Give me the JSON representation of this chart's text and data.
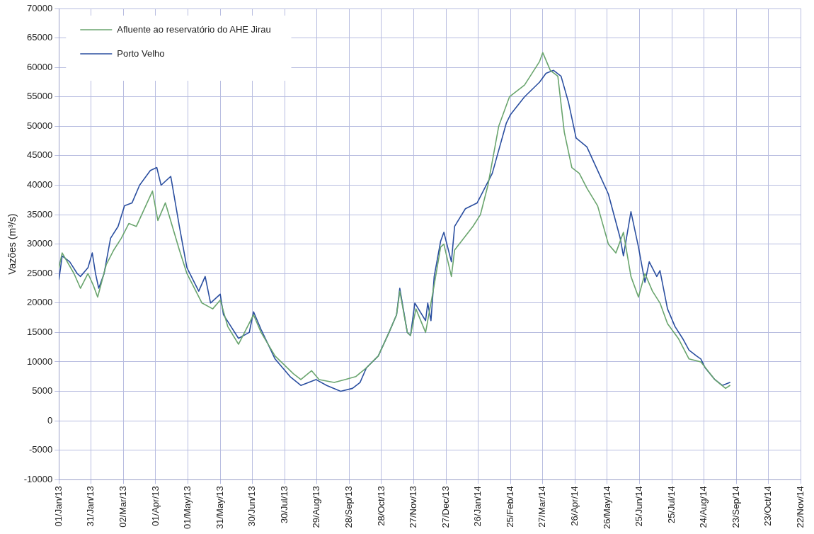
{
  "chart_data": {
    "type": "line",
    "ylabel": "Vazões (m³/s)",
    "xlim": [
      "2013-01-01",
      "2014-11-22"
    ],
    "xticks": [
      {
        "value": "2013-01-01",
        "label": "01/Jan/13"
      },
      {
        "value": "2013-01-31",
        "label": "31/Jan/13"
      },
      {
        "value": "2013-03-02",
        "label": "02/Mar/13"
      },
      {
        "value": "2013-04-01",
        "label": "01/Apr/13"
      },
      {
        "value": "2013-05-01",
        "label": "01/May/13"
      },
      {
        "value": "2013-05-31",
        "label": "31/May/13"
      },
      {
        "value": "2013-06-30",
        "label": "30/Jun/13"
      },
      {
        "value": "2013-07-30",
        "label": "30/Jul/13"
      },
      {
        "value": "2013-08-29",
        "label": "29/Aug/13"
      },
      {
        "value": "2013-09-28",
        "label": "28/Sep/13"
      },
      {
        "value": "2013-10-28",
        "label": "28/Oct/13"
      },
      {
        "value": "2013-11-27",
        "label": "27/Nov/13"
      },
      {
        "value": "2013-12-27",
        "label": "27/Dec/13"
      },
      {
        "value": "2014-01-26",
        "label": "26/Jan/14"
      },
      {
        "value": "2014-02-25",
        "label": "25/Feb/14"
      },
      {
        "value": "2014-03-27",
        "label": "27/Mar/14"
      },
      {
        "value": "2014-04-26",
        "label": "26/Apr/14"
      },
      {
        "value": "2014-05-26",
        "label": "26/May/14"
      },
      {
        "value": "2014-06-25",
        "label": "25/Jun/14"
      },
      {
        "value": "2014-07-25",
        "label": "25/Jul/14"
      },
      {
        "value": "2014-08-24",
        "label": "24/Aug/14"
      },
      {
        "value": "2014-09-23",
        "label": "23/Sep/14"
      },
      {
        "value": "2014-10-23",
        "label": "23/Oct/14"
      },
      {
        "value": "2014-11-22",
        "label": "22/Nov/14"
      }
    ],
    "ylim": [
      -10000,
      70000
    ],
    "yticks": [
      -10000,
      -5000,
      0,
      5000,
      10000,
      15000,
      20000,
      25000,
      30000,
      35000,
      40000,
      45000,
      50000,
      55000,
      60000,
      65000,
      70000
    ],
    "grid": true,
    "legend": "top left",
    "marker": "none",
    "line_style": "solid",
    "series": [
      {
        "name": "Afluente ao reservatório do AHE Jirau",
        "color": "#6aa56e",
        "x": [
          "2013-01-01",
          "2013-01-04",
          "2013-01-15",
          "2013-01-21",
          "2013-01-28",
          "2013-02-02",
          "2013-02-06",
          "2013-02-14",
          "2013-02-21",
          "2013-02-28",
          "2013-03-07",
          "2013-03-14",
          "2013-03-24",
          "2013-03-29",
          "2013-04-03",
          "2013-04-10",
          "2013-04-23",
          "2013-04-30",
          "2013-05-14",
          "2013-05-24",
          "2013-05-31",
          "2013-06-07",
          "2013-06-17",
          "2013-07-01",
          "2013-07-08",
          "2013-07-21",
          "2013-08-07",
          "2013-08-14",
          "2013-08-24",
          "2013-08-31",
          "2013-09-14",
          "2013-09-24",
          "2013-10-04",
          "2013-10-14",
          "2013-10-25",
          "2013-11-04",
          "2013-11-11",
          "2013-11-14",
          "2013-11-21",
          "2013-11-24",
          "2013-11-29",
          "2013-12-08",
          "2013-12-15",
          "2013-12-22",
          "2013-12-25",
          "2014-01-01",
          "2014-01-04",
          "2014-01-21",
          "2014-01-28",
          "2014-02-04",
          "2014-02-14",
          "2014-02-24",
          "2014-03-10",
          "2014-03-24",
          "2014-03-27",
          "2014-04-03",
          "2014-04-10",
          "2014-04-16",
          "2014-04-23",
          "2014-04-30",
          "2014-05-07",
          "2014-05-17",
          "2014-05-27",
          "2014-06-03",
          "2014-06-10",
          "2014-06-17",
          "2014-06-24",
          "2014-06-30",
          "2014-07-07",
          "2014-07-14",
          "2014-07-21",
          "2014-07-31",
          "2014-08-10",
          "2014-08-21",
          "2014-09-03",
          "2014-09-13",
          "2014-09-17"
        ],
        "values": [
          26000,
          28500,
          25000,
          22500,
          25000,
          23000,
          21000,
          26500,
          29000,
          31000,
          33500,
          33000,
          37000,
          39000,
          34000,
          37000,
          29000,
          25000,
          20000,
          19000,
          20500,
          16000,
          13000,
          18000,
          15000,
          11000,
          8000,
          7000,
          8500,
          7000,
          6500,
          7000,
          7500,
          9000,
          11000,
          15000,
          18000,
          22000,
          15000,
          14500,
          19000,
          15000,
          22000,
          29500,
          30000,
          24500,
          29000,
          33000,
          35000,
          40000,
          50000,
          55000,
          57000,
          61000,
          62500,
          59500,
          58500,
          49000,
          43000,
          42000,
          39500,
          36500,
          30000,
          28500,
          32000,
          24500,
          21000,
          25000,
          22000,
          20000,
          16500,
          14000,
          10500,
          10000,
          7000,
          5500,
          6000
        ]
      },
      {
        "name": "Porto Velho",
        "color": "#2b4fa0",
        "x": [
          "2013-01-01",
          "2013-01-04",
          "2013-01-11",
          "2013-01-18",
          "2013-01-21",
          "2013-01-28",
          "2013-02-01",
          "2013-02-04",
          "2013-02-07",
          "2013-02-12",
          "2013-02-18",
          "2013-02-25",
          "2013-03-03",
          "2013-03-10",
          "2013-03-17",
          "2013-03-27",
          "2013-04-02",
          "2013-04-06",
          "2013-04-15",
          "2013-04-23",
          "2013-04-30",
          "2013-05-11",
          "2013-05-17",
          "2013-05-22",
          "2013-05-31",
          "2013-06-03",
          "2013-06-17",
          "2013-06-27",
          "2013-07-01",
          "2013-07-08",
          "2013-07-21",
          "2013-08-04",
          "2013-08-14",
          "2013-08-28",
          "2013-09-07",
          "2013-09-20",
          "2013-10-01",
          "2013-10-08",
          "2013-10-14",
          "2013-10-25",
          "2013-11-04",
          "2013-11-11",
          "2013-11-14",
          "2013-11-21",
          "2013-11-24",
          "2013-11-28",
          "2013-12-08",
          "2013-12-10",
          "2013-12-13",
          "2013-12-16",
          "2013-12-22",
          "2013-12-25",
          "2014-01-01",
          "2014-01-04",
          "2014-01-14",
          "2014-01-25",
          "2014-02-08",
          "2014-02-21",
          "2014-02-25",
          "2014-03-10",
          "2014-03-24",
          "2014-03-30",
          "2014-04-06",
          "2014-04-13",
          "2014-04-20",
          "2014-04-27",
          "2014-05-07",
          "2014-05-17",
          "2014-05-27",
          "2014-06-07",
          "2014-06-10",
          "2014-06-17",
          "2014-06-24",
          "2014-06-30",
          "2014-07-04",
          "2014-07-11",
          "2014-07-14",
          "2014-07-21",
          "2014-07-28",
          "2014-08-04",
          "2014-08-10",
          "2014-08-17",
          "2014-08-21",
          "2014-08-25",
          "2014-09-03",
          "2014-09-10",
          "2014-09-17"
        ],
        "values": [
          24000,
          28000,
          27000,
          25000,
          24500,
          26000,
          28500,
          25000,
          22500,
          25000,
          31000,
          33000,
          36500,
          37000,
          40000,
          42500,
          43000,
          40000,
          41500,
          33000,
          26000,
          22000,
          24500,
          20000,
          21500,
          18000,
          14000,
          15000,
          18500,
          15500,
          10500,
          7500,
          6000,
          7000,
          6000,
          5000,
          5500,
          6500,
          9000,
          11000,
          15000,
          18000,
          22500,
          15000,
          14500,
          20000,
          17000,
          20000,
          17000,
          24500,
          30500,
          32000,
          27000,
          33000,
          36000,
          37000,
          42000,
          50500,
          52000,
          55000,
          57500,
          59000,
          59500,
          58500,
          54000,
          48000,
          46500,
          42500,
          38500,
          31000,
          28000,
          35500,
          29500,
          23500,
          27000,
          24500,
          25500,
          19000,
          16000,
          14000,
          12000,
          11000,
          10500,
          9000,
          7000,
          6000,
          6500
        ]
      }
    ]
  }
}
